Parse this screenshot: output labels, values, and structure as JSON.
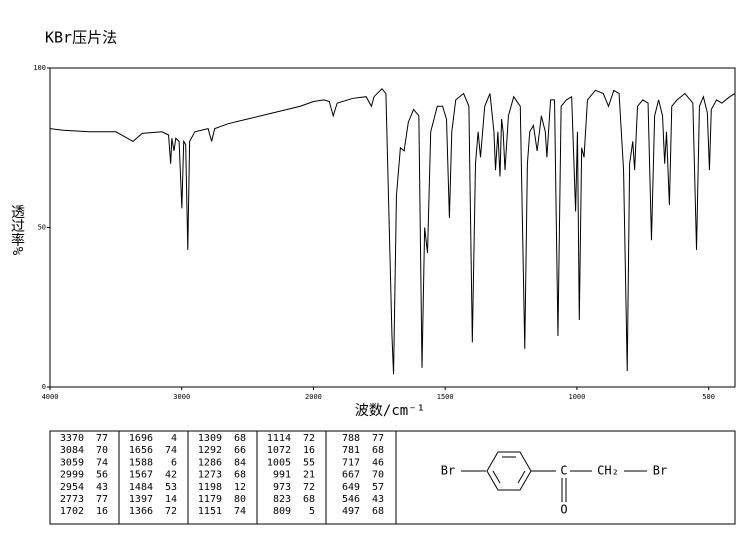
{
  "chart_data": {
    "type": "line",
    "title": "KBr压片法",
    "x_label": "波数/cm⁻¹",
    "y_label": "透过率%",
    "xlim": [
      4000,
      400
    ],
    "xticks": [
      4000,
      3000,
      2000,
      1500,
      1000,
      500
    ],
    "x_scale": {
      "break": 2000,
      "low_side_stretch": 2
    },
    "ylim": [
      0,
      100
    ],
    "yticks": [
      0,
      50,
      100
    ],
    "color": "#000000",
    "x": [
      4000,
      3900,
      3700,
      3500,
      3370,
      3300,
      3150,
      3100,
      3084,
      3075,
      3059,
      3045,
      3020,
      2999,
      2985,
      2970,
      2954,
      2940,
      2900,
      2800,
      2773,
      2750,
      2650,
      2500,
      2300,
      2100,
      2000,
      1960,
      1940,
      1925,
      1910,
      1850,
      1800,
      1780,
      1770,
      1740,
      1725,
      1702,
      1696,
      1685,
      1670,
      1656,
      1640,
      1620,
      1600,
      1588,
      1578,
      1567,
      1555,
      1530,
      1510,
      1495,
      1484,
      1475,
      1460,
      1430,
      1410,
      1397,
      1385,
      1375,
      1366,
      1350,
      1330,
      1315,
      1309,
      1300,
      1292,
      1286,
      1280,
      1273,
      1260,
      1240,
      1215,
      1198,
      1188,
      1179,
      1165,
      1151,
      1135,
      1120,
      1114,
      1100,
      1085,
      1072,
      1060,
      1040,
      1020,
      1005,
      998,
      991,
      982,
      973,
      960,
      930,
      900,
      880,
      860,
      840,
      823,
      809,
      800,
      788,
      781,
      770,
      750,
      730,
      717,
      705,
      690,
      675,
      667,
      660,
      649,
      640,
      620,
      590,
      560,
      546,
      535,
      520,
      505,
      497,
      490,
      470,
      450,
      420,
      400
    ],
    "values": [
      81,
      80.5,
      80,
      80,
      77,
      79.5,
      80,
      79,
      70,
      78,
      74,
      78,
      77,
      56,
      77,
      76,
      43,
      77,
      80,
      81,
      77,
      81,
      82.5,
      84,
      86,
      88,
      89.5,
      90,
      89.5,
      85,
      89,
      90.5,
      91,
      88,
      91,
      93.5,
      92,
      16,
      4,
      60,
      75,
      74,
      83,
      87,
      85,
      6,
      50,
      42,
      80,
      88,
      88,
      84,
      53,
      80,
      90,
      92,
      88,
      14,
      70,
      80,
      72,
      88,
      92,
      80,
      68,
      80,
      66,
      84,
      80,
      68,
      85,
      91,
      88,
      12,
      70,
      80,
      82,
      74,
      85,
      80,
      72,
      90,
      90,
      16,
      88,
      90,
      91,
      55,
      80,
      21,
      75,
      72,
      90,
      93,
      92,
      88,
      93,
      92,
      68,
      5,
      70,
      77,
      68,
      88,
      90,
      89,
      46,
      85,
      90,
      85,
      70,
      80,
      57,
      88,
      90,
      92,
      89,
      43,
      88,
      91,
      86,
      68,
      87,
      90,
      89,
      91,
      92
    ]
  },
  "peak_table": {
    "rows": [
      [
        3370,
        77
      ],
      [
        3084,
        70
      ],
      [
        3059,
        74
      ],
      [
        2999,
        56
      ],
      [
        2954,
        43
      ],
      [
        2773,
        77
      ],
      [
        1702,
        16
      ],
      [
        1696,
        4
      ],
      [
        1656,
        74
      ],
      [
        1588,
        6
      ],
      [
        1567,
        42
      ],
      [
        1484,
        53
      ],
      [
        1397,
        14
      ],
      [
        1366,
        72
      ],
      [
        1309,
        68
      ],
      [
        1292,
        66
      ],
      [
        1286,
        84
      ],
      [
        1273,
        68
      ],
      [
        1198,
        12
      ],
      [
        1179,
        80
      ],
      [
        1151,
        74
      ],
      [
        1114,
        72
      ],
      [
        1072,
        16
      ],
      [
        1005,
        55
      ],
      [
        991,
        21
      ],
      [
        973,
        72
      ],
      [
        823,
        68
      ],
      [
        809,
        5
      ],
      [
        788,
        77
      ],
      [
        781,
        68
      ],
      [
        717,
        46
      ],
      [
        667,
        70
      ],
      [
        649,
        57
      ],
      [
        546,
        43
      ],
      [
        497,
        68
      ]
    ]
  },
  "structure": {
    "left_atom": "Br",
    "carbonyl_carbon": "C",
    "oxygen": "O",
    "methylene": "CH₂",
    "right_atom": "Br"
  }
}
